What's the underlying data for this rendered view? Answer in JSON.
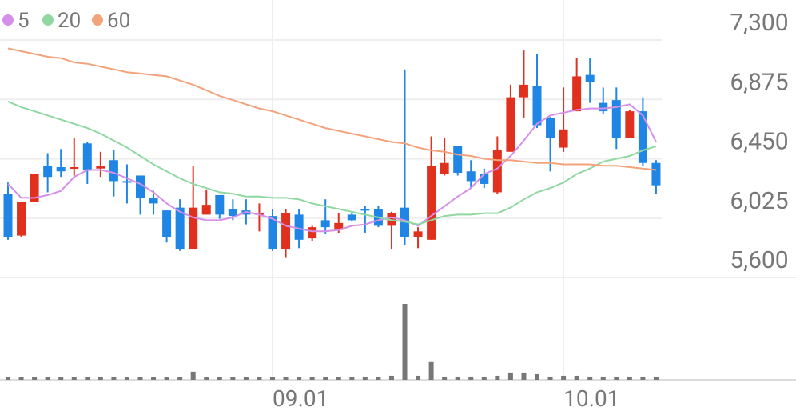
{
  "chart_data": {
    "type": "candlestick",
    "categories": [
      null,
      null,
      null,
      null,
      null,
      null,
      null,
      null,
      null,
      null,
      null,
      null,
      null,
      null,
      null,
      null,
      null,
      null,
      null,
      null,
      "09.01",
      null,
      null,
      null,
      null,
      null,
      null,
      null,
      null,
      null,
      null,
      null,
      null,
      null,
      null,
      null,
      null,
      null,
      null,
      null,
      null,
      null,
      "10.01",
      null,
      null,
      null,
      null,
      null,
      null,
      null
    ],
    "open": [
      6200,
      5900,
      6140,
      6400,
      6390,
      6380,
      6560,
      6380,
      6440,
      6290,
      6330,
      6170,
      6080,
      6100,
      5800,
      6050,
      6190,
      6090,
      6080,
      6050,
      6040,
      5800,
      6050,
      5880,
      6010,
      5940,
      6050,
      6090,
      6090,
      5970,
      6100,
      5890,
      5870,
      6340,
      6540,
      6360,
      6340,
      6210,
      6500,
      6890,
      6970,
      6740,
      6530,
      6790,
      7050,
      6850,
      6870,
      6600,
      6790,
      6420
    ],
    "high": [
      6280,
      6140,
      6340,
      6490,
      6520,
      6600,
      6570,
      6500,
      6510,
      6410,
      6330,
      6220,
      6080,
      6160,
      6400,
      6230,
      6190,
      6160,
      6160,
      6130,
      6090,
      6090,
      6090,
      5970,
      6160,
      6060,
      6060,
      6110,
      6110,
      6070,
      7090,
      5960,
      6610,
      6600,
      6540,
      6440,
      6380,
      6610,
      6980,
      7230,
      7200,
      6750,
      6960,
      7170,
      7170,
      6960,
      6960,
      6800,
      6890,
      6440
    ],
    "low": [
      5870,
      5890,
      6140,
      6210,
      6320,
      6330,
      6270,
      6320,
      6180,
      6130,
      6050,
      6050,
      5850,
      5790,
      5800,
      6050,
      6020,
      6010,
      5980,
      5930,
      5790,
      5740,
      5810,
      5860,
      5910,
      5920,
      6000,
      5920,
      5960,
      5800,
      5830,
      5810,
      5870,
      6330,
      6330,
      6240,
      6240,
      6200,
      6500,
      6740,
      6670,
      6360,
      6500,
      6790,
      6850,
      6770,
      6520,
      6600,
      6400,
      6200
    ],
    "close": [
      5890,
      6140,
      6340,
      6320,
      6360,
      6390,
      6370,
      6400,
      6290,
      6280,
      6170,
      6130,
      5890,
      5800,
      6100,
      6120,
      6050,
      6040,
      6050,
      6060,
      5800,
      6060,
      5870,
      5960,
      5960,
      5990,
      6010,
      6080,
      5970,
      6060,
      5890,
      5930,
      6400,
      6420,
      6350,
      6290,
      6270,
      6510,
      6890,
      6980,
      6690,
      6600,
      6660,
      7040,
      7000,
      6790,
      6600,
      6790,
      6420,
      6260
    ],
    "up_color": "#e0311f",
    "down_color": "#1f86e6",
    "moving_averages": [
      {
        "name": "5",
        "color": "#d58fe8",
        "values": [
          6270,
          6170,
          6170,
          6190,
          6220,
          6320,
          6370,
          6370,
          6350,
          6310,
          6270,
          6210,
          6130,
          6070,
          6030,
          6010,
          6010,
          6030,
          6070,
          6050,
          6020,
          5970,
          5950,
          5930,
          5930,
          5940,
          5970,
          5980,
          6010,
          6030,
          6010,
          5970,
          6040,
          6110,
          6180,
          6240,
          6340,
          6380,
          6470,
          6580,
          6700,
          6760,
          6780,
          6800,
          6810,
          6810,
          6820,
          6840,
          6760,
          6570
        ]
      },
      {
        "name": "20",
        "color": "#8fd8a2",
        "values": [
          6860,
          6820,
          6790,
          6760,
          6730,
          6700,
          6670,
          6630,
          6580,
          6530,
          6470,
          6410,
          6360,
          6310,
          6270,
          6240,
          6210,
          6200,
          6180,
          6180,
          6170,
          6170,
          6160,
          6130,
          6110,
          6090,
          6070,
          6050,
          6030,
          6010,
          6000,
          5980,
          6010,
          6040,
          6050,
          6050,
          6060,
          6060,
          6100,
          6160,
          6210,
          6240,
          6280,
          6340,
          6380,
          6430,
          6450,
          6470,
          6510,
          6540
        ]
      },
      {
        "name": "60",
        "color": "#f3a37c",
        "values": [
          7240,
          7220,
          7200,
          7180,
          7170,
          7140,
          7130,
          7110,
          7090,
          7070,
          7060,
          7050,
          7040,
          7010,
          6980,
          6940,
          6900,
          6870,
          6840,
          6810,
          6790,
          6760,
          6730,
          6700,
          6670,
          6650,
          6630,
          6610,
          6590,
          6570,
          6560,
          6530,
          6510,
          6500,
          6480,
          6470,
          6450,
          6440,
          6440,
          6430,
          6420,
          6420,
          6410,
          6410,
          6410,
          6400,
          6400,
          6390,
          6380,
          6370
        ]
      }
    ],
    "volume": {
      "color": "#777777",
      "values": [
        30,
        30,
        30,
        30,
        30,
        30,
        30,
        30,
        30,
        30,
        30,
        30,
        30,
        30,
        100,
        30,
        30,
        30,
        30,
        30,
        30,
        30,
        30,
        30,
        30,
        30,
        30,
        30,
        30,
        50,
        940,
        50,
        220,
        40,
        40,
        40,
        40,
        50,
        90,
        90,
        70,
        40,
        50,
        50,
        40,
        40,
        40,
        40,
        40,
        40
      ]
    },
    "ylim": [
      5600,
      7300
    ],
    "yticks": [
      {
        "value": 5600,
        "label": "5,600"
      },
      {
        "value": 6025,
        "label": "6,025"
      },
      {
        "value": 6450,
        "label": "6,450"
      },
      {
        "value": 6875,
        "label": "6,875"
      },
      {
        "value": 7300,
        "label": "7,300"
      }
    ],
    "grid": true
  }
}
